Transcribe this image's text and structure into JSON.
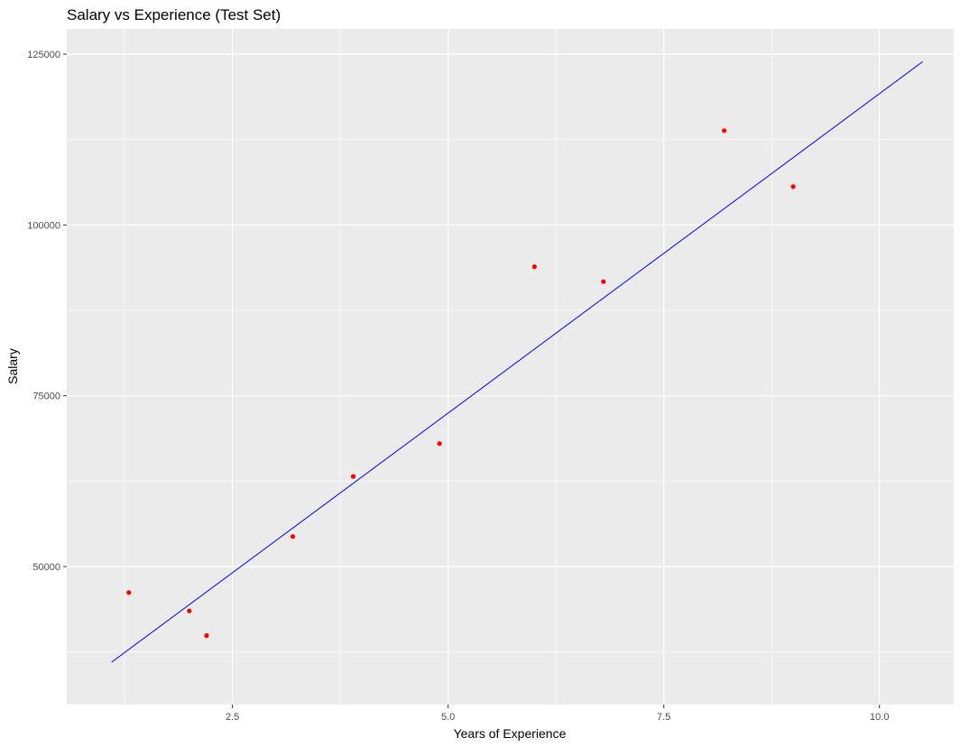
{
  "chart_data": {
    "type": "scatter",
    "title": "Salary vs Experience (Test Set)",
    "xlabel": "Years of Experience",
    "ylabel": "Salary",
    "xlim": [
      0.58,
      10.86
    ],
    "ylim": [
      29800,
      128700
    ],
    "x_ticks": [
      2.5,
      5.0,
      7.5,
      10.0
    ],
    "x_tick_labels": [
      "2.5",
      "5.0",
      "7.5",
      "10.0"
    ],
    "y_ticks": [
      50000,
      75000,
      100000,
      125000
    ],
    "y_tick_labels": [
      "50000",
      "75000",
      "100000",
      "125000"
    ],
    "grid": true,
    "legend": "none",
    "colors": {
      "panel_background": "#ebebeb",
      "grid": "#ffffff",
      "points": "#ff0000",
      "line": "#0000ff"
    },
    "series": [
      {
        "type": "scatter",
        "points": [
          {
            "x": 1.3,
            "y": 46200
          },
          {
            "x": 2.0,
            "y": 43500
          },
          {
            "x": 2.2,
            "y": 39900
          },
          {
            "x": 3.2,
            "y": 54400
          },
          {
            "x": 3.9,
            "y": 63200
          },
          {
            "x": 4.9,
            "y": 68000
          },
          {
            "x": 6.0,
            "y": 93900
          },
          {
            "x": 6.8,
            "y": 91700
          },
          {
            "x": 8.2,
            "y": 113800
          },
          {
            "x": 9.0,
            "y": 105600
          }
        ]
      },
      {
        "type": "line",
        "points": [
          {
            "x": 1.1,
            "y": 36000
          },
          {
            "x": 10.5,
            "y": 123900
          }
        ]
      }
    ]
  }
}
